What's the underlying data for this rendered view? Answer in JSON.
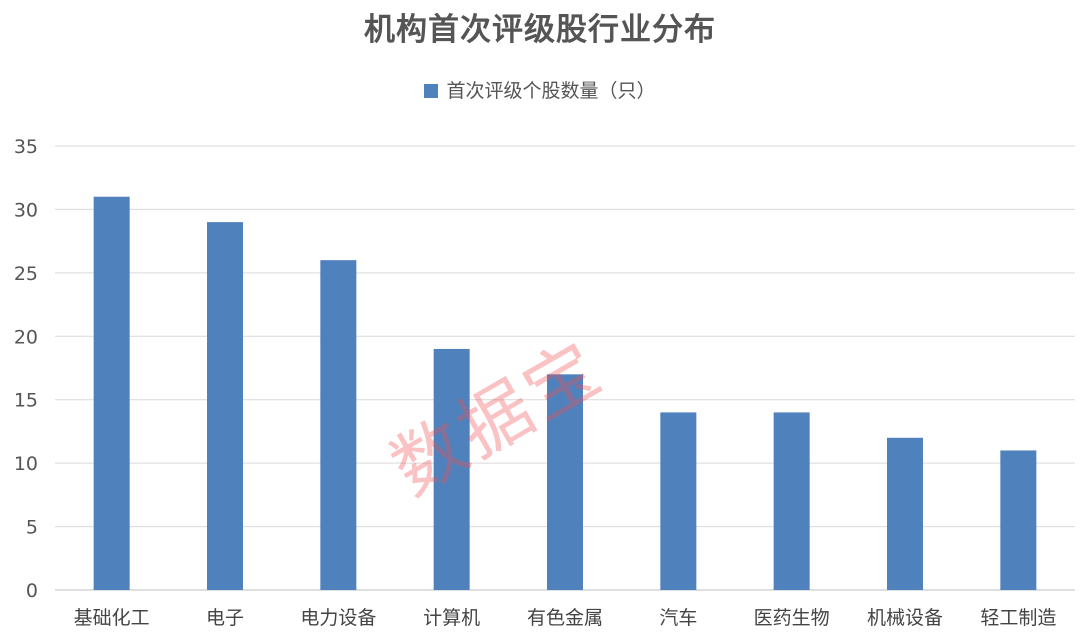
{
  "watermark": "数据宝",
  "chart_data": {
    "type": "bar",
    "title": "机构首次评级股行业分布",
    "categories": [
      "基础化工",
      "电子",
      "电力设备",
      "计算机",
      "有色金属",
      "汽车",
      "医药生物",
      "机械设备",
      "轻工制造"
    ],
    "series": [
      {
        "name": "首次评级个股数量（只）",
        "values": [
          31,
          29,
          26,
          19,
          17,
          14,
          14,
          12,
          11
        ],
        "color": "#4f81bd"
      }
    ],
    "xlabel": "",
    "ylabel": "",
    "ylim": [
      0,
      35
    ],
    "yticks": [
      0,
      5,
      10,
      15,
      20,
      25,
      30,
      35
    ],
    "grid": true,
    "legend": "top"
  }
}
